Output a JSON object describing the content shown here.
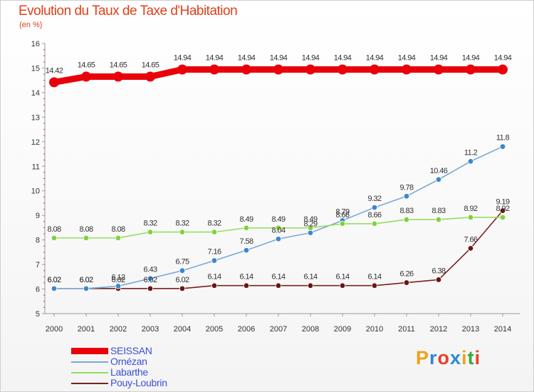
{
  "chart_data": {
    "type": "line",
    "title": "Evolution du Taux de Taxe d'Habitation",
    "subtitle": "(en %)",
    "xlabel": "",
    "ylabel": "",
    "ylim": [
      5,
      16
    ],
    "yticks": [
      "5",
      "6",
      "7",
      "8",
      "9",
      "10",
      "11",
      "12",
      "13",
      "14",
      "15",
      "16"
    ],
    "categories": [
      "2000",
      "2001",
      "2002",
      "2003",
      "2004",
      "2005",
      "2006",
      "2007",
      "2008",
      "2009",
      "2010",
      "2011",
      "2012",
      "2013",
      "2014"
    ],
    "grid": false,
    "legend_position": "bottom-left",
    "series": [
      {
        "name": "SEISSAN",
        "color": "#e8000a",
        "marker_color": "#e8000a",
        "values": [
          14.42,
          14.65,
          14.65,
          14.65,
          14.94,
          14.94,
          14.94,
          14.94,
          14.94,
          14.94,
          14.94,
          14.94,
          14.94,
          14.94,
          14.94
        ],
        "labels": [
          "14.42",
          "14.65",
          "14.65",
          "14.65",
          "14.94",
          "14.94",
          "14.94",
          "14.94",
          "14.94",
          "14.94",
          "14.94",
          "14.94",
          "14.94",
          "14.94",
          "14.94"
        ]
      },
      {
        "name": "Ornézan",
        "color": "#78a9d8",
        "marker_color": "#3d87c9",
        "values": [
          6.02,
          6.02,
          6.12,
          6.43,
          6.75,
          7.16,
          7.58,
          8.04,
          8.29,
          8.79,
          9.32,
          9.78,
          10.46,
          11.2,
          11.8
        ],
        "labels": [
          "6.02",
          "6.02",
          "6.12",
          "6.43",
          "6.75",
          "7.16",
          "7.58",
          "8.04",
          "8.29",
          "8.79",
          "9.32",
          "9.78",
          "10.46",
          "11.2",
          "11.8"
        ]
      },
      {
        "name": "Labarthe",
        "color": "#96dc5e",
        "marker_color": "#7fd33a",
        "values": [
          8.08,
          8.08,
          8.08,
          8.32,
          8.32,
          8.32,
          8.49,
          8.49,
          8.49,
          8.66,
          8.66,
          8.83,
          8.83,
          8.92,
          8.92
        ],
        "labels": [
          "8.08",
          "8.08",
          "8.08",
          "8.32",
          "8.32",
          "8.32",
          "8.49",
          "8.49",
          "8.49",
          "8.66",
          "8.66",
          "8.83",
          "8.83",
          "8.92",
          "8.92"
        ]
      },
      {
        "name": "Pouy-Loubrin",
        "color": "#7a2020",
        "marker_color": "#6a1414",
        "values": [
          6.02,
          6.02,
          6.02,
          6.02,
          6.02,
          6.14,
          6.14,
          6.14,
          6.14,
          6.14,
          6.14,
          6.26,
          6.38,
          7.66,
          9.19
        ],
        "labels": [
          "6.02",
          "6.02",
          "6.02",
          "6.02",
          "6.02",
          "6.14",
          "6.14",
          "6.14",
          "6.14",
          "6.14",
          "6.14",
          "6.26",
          "6.38",
          "7.66",
          "9.19"
        ]
      }
    ]
  },
  "legend": {
    "items": [
      {
        "label": "SEISSAN",
        "color": "#e8000a",
        "weight": "thick"
      },
      {
        "label": "Ornézan",
        "color": "#78a9d8",
        "weight": "thin"
      },
      {
        "label": "Labarthe",
        "color": "#96dc5e",
        "weight": "thin"
      },
      {
        "label": "Pouy-Loubrin",
        "color": "#7a2020",
        "weight": "thin"
      }
    ]
  },
  "logo": {
    "text": "Proxiti",
    "letter_colors": [
      "#f0a21a",
      "#2a8ad8",
      "#e8402a",
      "#2a8ad8",
      "#f0a21a",
      "#3aa83a",
      "#e8402a"
    ]
  }
}
